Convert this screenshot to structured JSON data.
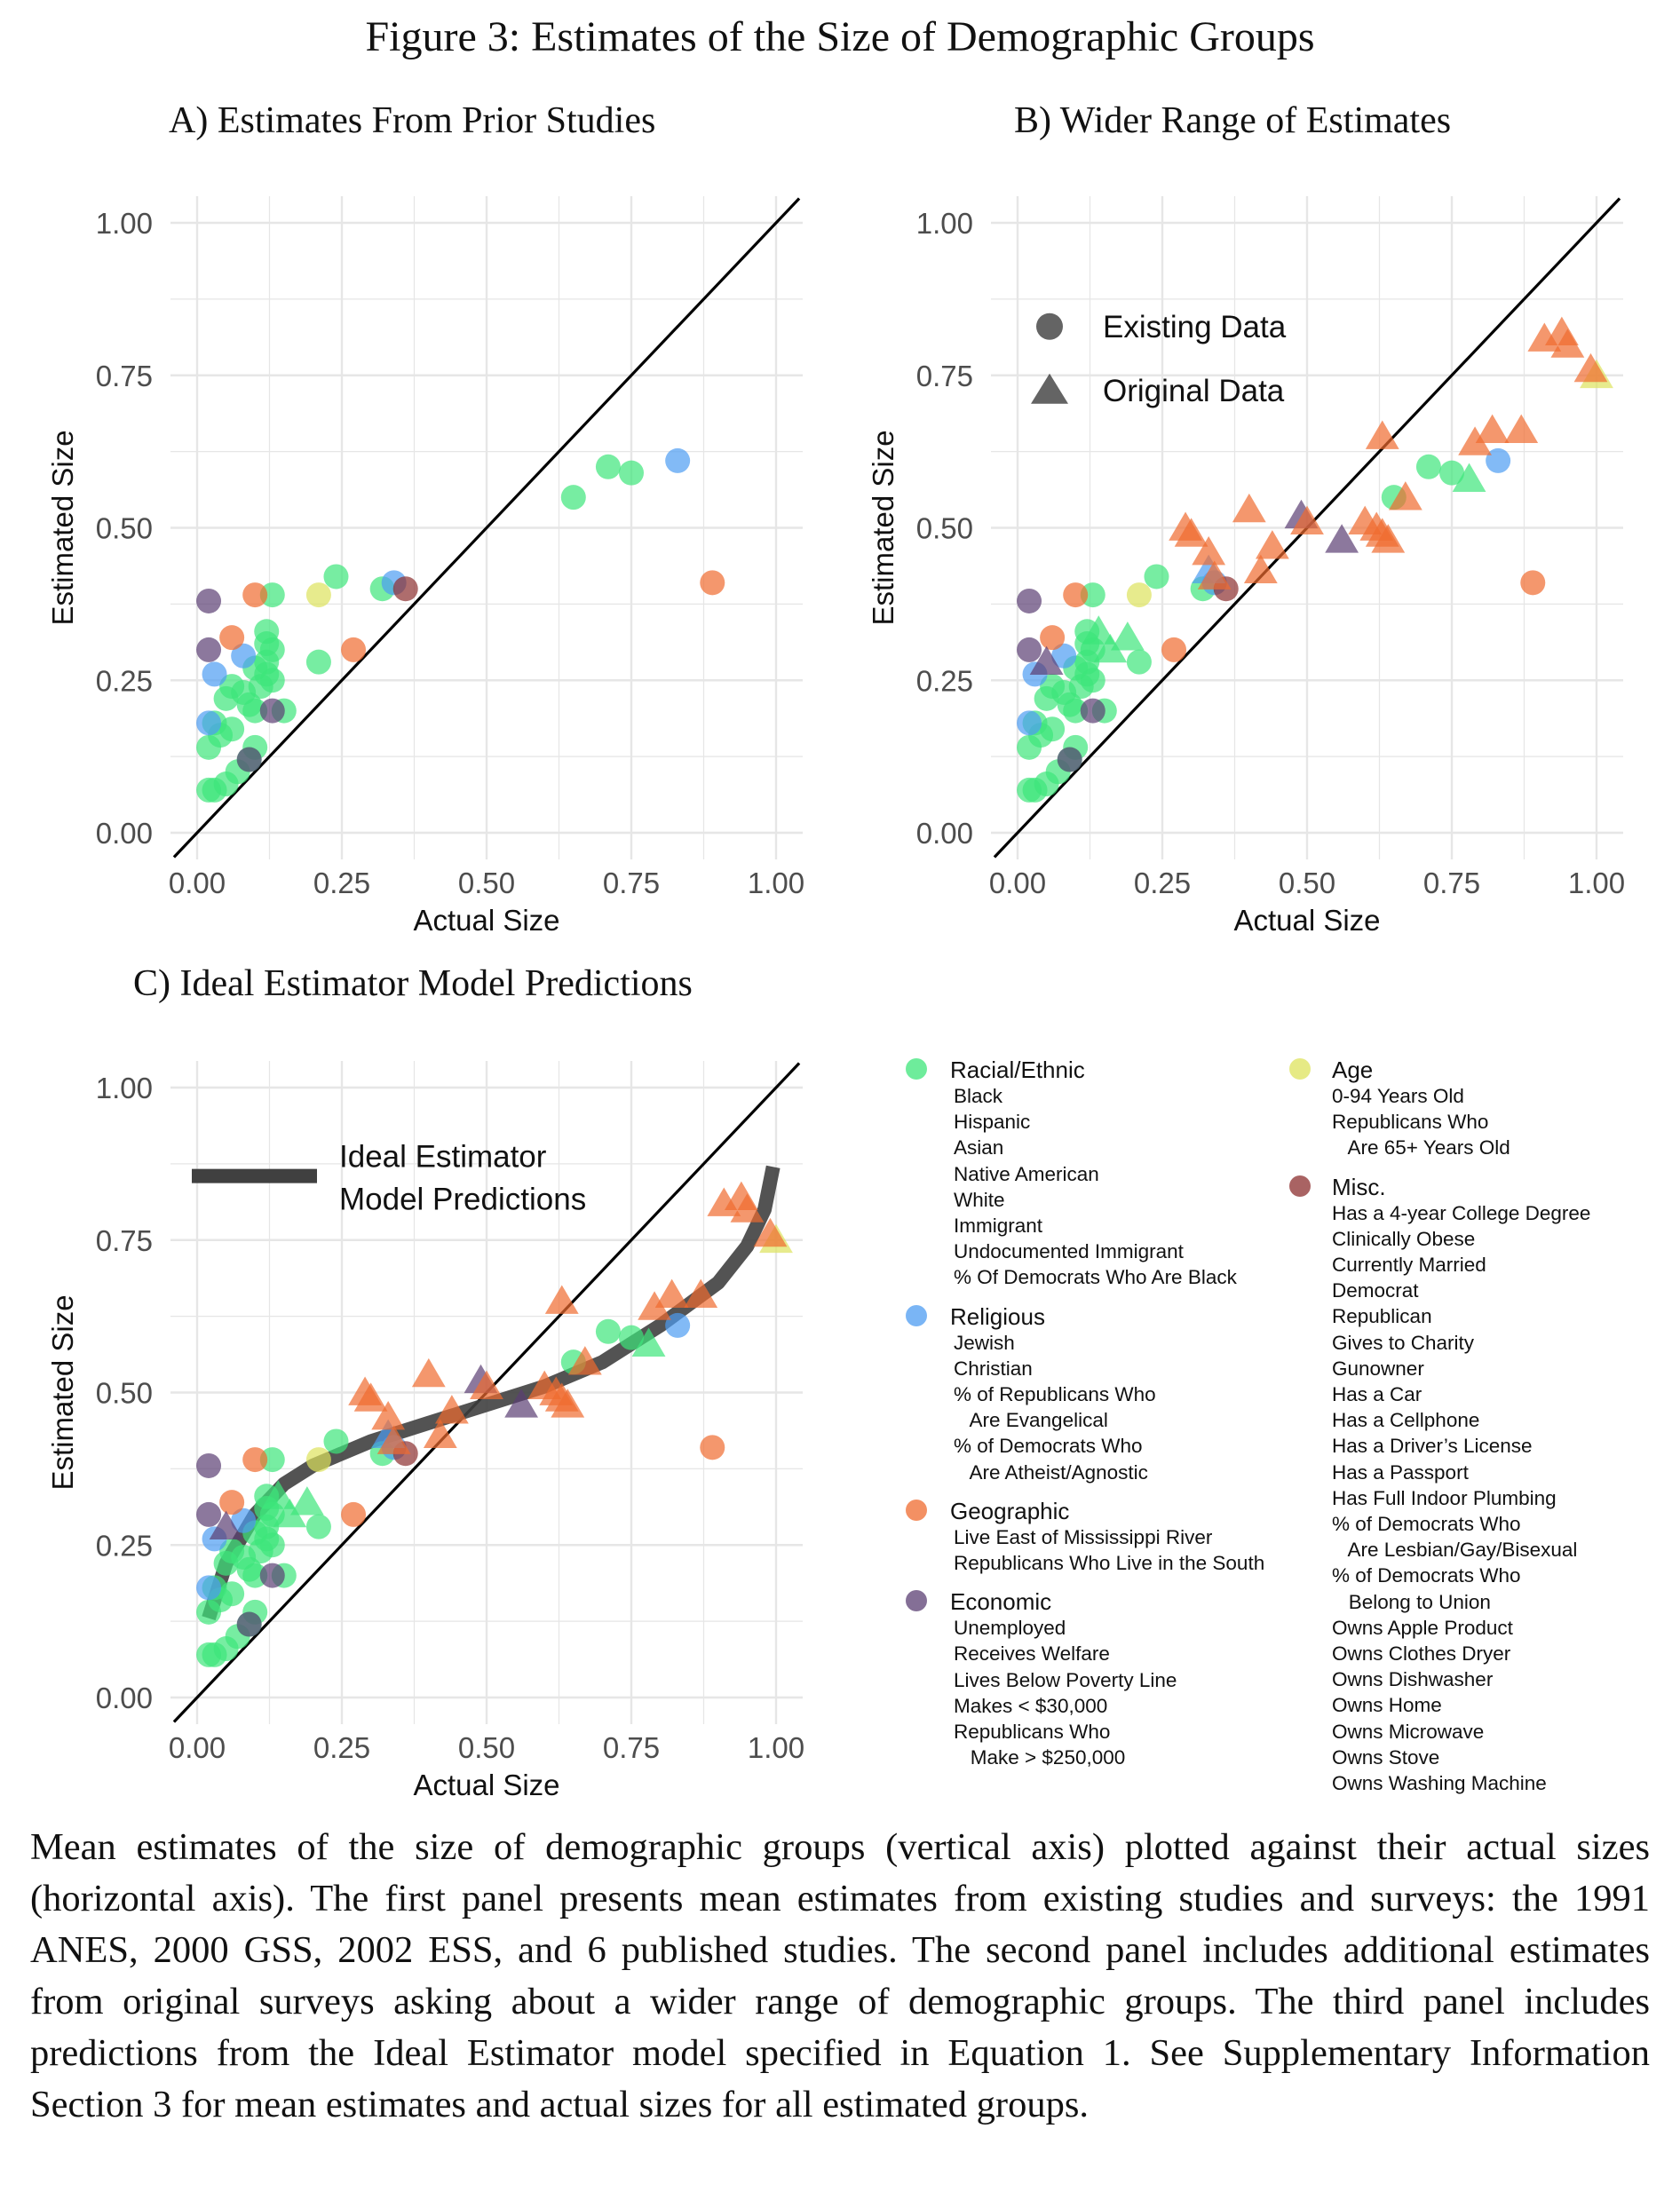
{
  "figure_title": "Figure 3: Estimates of the Size of Demographic Groups",
  "caption": "Mean estimates of the size of demographic groups (vertical axis) plotted against their actual sizes (horizontal axis). The first panel presents mean estimates from existing studies and sur­veys: the 1991 ANES, 2000 GSS, 2002 ESS, and 6 published studies. The second panel in­cludes additional estimates from original surveys asking about a wider range of demographic groups. The third panel includes predictions from the Ideal Estimator model specified in Equa­tion 1. See Supplementary Information Section 3 for mean estimates and actual sizes for all estimated groups.",
  "colors": {
    "racial": "#3de57a",
    "religious": "#4d9cf2",
    "geographic": "#ef6b2f",
    "economic": "#5b3f73",
    "age": "#dde35c",
    "misc": "#8c2f2f",
    "line45": "#000000",
    "ideal": "#404040",
    "grid": "#e6e6e6"
  },
  "chart_data": [
    {
      "type": "scatter",
      "panel": "A",
      "title": "A) Estimates From Prior Studies",
      "xlabel": "Actual Size",
      "ylabel": "Estimated Size",
      "xlim": [
        0,
        1
      ],
      "ylim": [
        0,
        1
      ],
      "xticks": [
        "0.00",
        "0.25",
        "0.50",
        "0.75",
        "1.00"
      ],
      "yticks": [
        "0.00",
        "0.25",
        "0.50",
        "0.75",
        "1.00"
      ],
      "grid": true,
      "reference_line": "y = x",
      "show_original": false,
      "show_ideal": false
    },
    {
      "type": "scatter",
      "panel": "B",
      "title": "B) Wider Range of Estimates",
      "xlabel": "Actual Size",
      "ylabel": "Estimated Size",
      "xlim": [
        0,
        1
      ],
      "ylim": [
        0,
        1
      ],
      "xticks": [
        "0.00",
        "0.25",
        "0.50",
        "0.75",
        "1.00"
      ],
      "yticks": [
        "0.00",
        "0.25",
        "0.50",
        "0.75",
        "1.00"
      ],
      "grid": true,
      "reference_line": "y = x",
      "show_original": true,
      "show_ideal": false,
      "shape_legend": [
        {
          "shape": "circle",
          "label": "Existing Data"
        },
        {
          "shape": "triangle",
          "label": "Original Data"
        }
      ]
    },
    {
      "type": "scatter",
      "panel": "C",
      "title": "C) Ideal Estimator Model Predictions",
      "xlabel": "Actual Size",
      "ylabel": "Estimated Size",
      "xlim": [
        0,
        1
      ],
      "ylim": [
        0,
        1
      ],
      "xticks": [
        "0.00",
        "0.25",
        "0.50",
        "0.75",
        "1.00"
      ],
      "yticks": [
        "0.00",
        "0.25",
        "0.50",
        "0.75",
        "1.00"
      ],
      "grid": true,
      "reference_line": "y = x",
      "show_original": true,
      "show_ideal": true,
      "line_legend": [
        "Ideal Estimator",
        "Model Predictions"
      ]
    }
  ],
  "series": {
    "existing": [
      {
        "g": "racial",
        "x": 0.02,
        "y": 0.07
      },
      {
        "g": "racial",
        "x": 0.03,
        "y": 0.07
      },
      {
        "g": "racial",
        "x": 0.05,
        "y": 0.08
      },
      {
        "g": "racial",
        "x": 0.02,
        "y": 0.14
      },
      {
        "g": "racial",
        "x": 0.04,
        "y": 0.16
      },
      {
        "g": "racial",
        "x": 0.06,
        "y": 0.17
      },
      {
        "g": "racial",
        "x": 0.03,
        "y": 0.18
      },
      {
        "g": "racial",
        "x": 0.07,
        "y": 0.1
      },
      {
        "g": "racial",
        "x": 0.09,
        "y": 0.12
      },
      {
        "g": "racial",
        "x": 0.1,
        "y": 0.14
      },
      {
        "g": "racial",
        "x": 0.05,
        "y": 0.22
      },
      {
        "g": "racial",
        "x": 0.06,
        "y": 0.24
      },
      {
        "g": "racial",
        "x": 0.08,
        "y": 0.23
      },
      {
        "g": "racial",
        "x": 0.09,
        "y": 0.21
      },
      {
        "g": "racial",
        "x": 0.1,
        "y": 0.2
      },
      {
        "g": "racial",
        "x": 0.11,
        "y": 0.24
      },
      {
        "g": "racial",
        "x": 0.12,
        "y": 0.26
      },
      {
        "g": "racial",
        "x": 0.13,
        "y": 0.25
      },
      {
        "g": "racial",
        "x": 0.12,
        "y": 0.28
      },
      {
        "g": "racial",
        "x": 0.1,
        "y": 0.27
      },
      {
        "g": "racial",
        "x": 0.12,
        "y": 0.31
      },
      {
        "g": "racial",
        "x": 0.13,
        "y": 0.3
      },
      {
        "g": "racial",
        "x": 0.12,
        "y": 0.33
      },
      {
        "g": "racial",
        "x": 0.13,
        "y": 0.39
      },
      {
        "g": "racial",
        "x": 0.15,
        "y": 0.2
      },
      {
        "g": "racial",
        "x": 0.21,
        "y": 0.28
      },
      {
        "g": "racial",
        "x": 0.24,
        "y": 0.42
      },
      {
        "g": "racial",
        "x": 0.32,
        "y": 0.4
      },
      {
        "g": "racial",
        "x": 0.65,
        "y": 0.55
      },
      {
        "g": "racial",
        "x": 0.71,
        "y": 0.6
      },
      {
        "g": "racial",
        "x": 0.75,
        "y": 0.59
      },
      {
        "g": "religious",
        "x": 0.02,
        "y": 0.18
      },
      {
        "g": "religious",
        "x": 0.03,
        "y": 0.26
      },
      {
        "g": "religious",
        "x": 0.08,
        "y": 0.29
      },
      {
        "g": "religious",
        "x": 0.34,
        "y": 0.41
      },
      {
        "g": "religious",
        "x": 0.83,
        "y": 0.61
      },
      {
        "g": "geographic",
        "x": 0.06,
        "y": 0.32
      },
      {
        "g": "geographic",
        "x": 0.1,
        "y": 0.39
      },
      {
        "g": "geographic",
        "x": 0.27,
        "y": 0.3
      },
      {
        "g": "geographic",
        "x": 0.89,
        "y": 0.41
      },
      {
        "g": "economic",
        "x": 0.02,
        "y": 0.38
      },
      {
        "g": "economic",
        "x": 0.02,
        "y": 0.3
      },
      {
        "g": "economic",
        "x": 0.09,
        "y": 0.12
      },
      {
        "g": "economic",
        "x": 0.13,
        "y": 0.2
      },
      {
        "g": "age",
        "x": 0.21,
        "y": 0.39
      },
      {
        "g": "misc",
        "x": 0.36,
        "y": 0.4
      }
    ],
    "original": [
      {
        "g": "racial",
        "x": 0.14,
        "y": 0.33
      },
      {
        "g": "racial",
        "x": 0.16,
        "y": 0.3
      },
      {
        "g": "racial",
        "x": 0.19,
        "y": 0.32
      },
      {
        "g": "racial",
        "x": 0.78,
        "y": 0.58
      },
      {
        "g": "religious",
        "x": 0.33,
        "y": 0.43
      },
      {
        "g": "economic",
        "x": 0.05,
        "y": 0.28
      },
      {
        "g": "economic",
        "x": 0.49,
        "y": 0.52
      },
      {
        "g": "economic",
        "x": 0.56,
        "y": 0.48
      },
      {
        "g": "age",
        "x": 1.0,
        "y": 0.75
      },
      {
        "g": "geographic",
        "x": 0.29,
        "y": 0.5
      },
      {
        "g": "geographic",
        "x": 0.3,
        "y": 0.49
      },
      {
        "g": "geographic",
        "x": 0.33,
        "y": 0.46
      },
      {
        "g": "geographic",
        "x": 0.34,
        "y": 0.42
      },
      {
        "g": "geographic",
        "x": 0.4,
        "y": 0.53
      },
      {
        "g": "geographic",
        "x": 0.42,
        "y": 0.43
      },
      {
        "g": "geographic",
        "x": 0.44,
        "y": 0.47
      },
      {
        "g": "geographic",
        "x": 0.5,
        "y": 0.51
      },
      {
        "g": "geographic",
        "x": 0.6,
        "y": 0.51
      },
      {
        "g": "geographic",
        "x": 0.62,
        "y": 0.5
      },
      {
        "g": "geographic",
        "x": 0.63,
        "y": 0.49
      },
      {
        "g": "geographic",
        "x": 0.64,
        "y": 0.48
      },
      {
        "g": "geographic",
        "x": 0.67,
        "y": 0.55
      },
      {
        "g": "geographic",
        "x": 0.63,
        "y": 0.65
      },
      {
        "g": "geographic",
        "x": 0.79,
        "y": 0.64
      },
      {
        "g": "geographic",
        "x": 0.82,
        "y": 0.66
      },
      {
        "g": "geographic",
        "x": 0.87,
        "y": 0.66
      },
      {
        "g": "geographic",
        "x": 0.91,
        "y": 0.81
      },
      {
        "g": "geographic",
        "x": 0.94,
        "y": 0.82
      },
      {
        "g": "geographic",
        "x": 0.95,
        "y": 0.8
      },
      {
        "g": "geographic",
        "x": 0.99,
        "y": 0.76
      }
    ],
    "ideal_curve": [
      [
        0.02,
        0.13
      ],
      [
        0.05,
        0.22
      ],
      [
        0.1,
        0.3
      ],
      [
        0.15,
        0.35
      ],
      [
        0.2,
        0.38
      ],
      [
        0.3,
        0.42
      ],
      [
        0.4,
        0.45
      ],
      [
        0.5,
        0.48
      ],
      [
        0.6,
        0.51
      ],
      [
        0.7,
        0.55
      ],
      [
        0.8,
        0.61
      ],
      [
        0.9,
        0.68
      ],
      [
        0.95,
        0.74
      ],
      [
        0.98,
        0.8
      ],
      [
        0.995,
        0.87
      ]
    ]
  },
  "legend": {
    "groups": [
      {
        "key": "racial",
        "label": "Racial/Ethnic",
        "items": [
          "Black",
          "Hispanic",
          "Asian",
          "Native American",
          "White",
          "Immigrant",
          "Undocumented Immigrant",
          "% Of Democrats Who Are Black"
        ]
      },
      {
        "key": "religious",
        "label": "Religious",
        "items": [
          "Jewish",
          "Christian",
          "% of Republicans Who",
          "   Are Evangelical",
          "% of Democrats Who",
          "   Are Atheist/Agnostic"
        ]
      },
      {
        "key": "geographic",
        "label": "Geographic",
        "items": [
          "Live East of Mississippi River",
          "Republicans Who Live in the South"
        ]
      },
      {
        "key": "economic",
        "label": "Economic",
        "items": [
          "Unemployed",
          "Receives Welfare",
          "Lives Below Poverty Line",
          "Makes < $30,000",
          "Republicans Who",
          "   Make > $250,000"
        ]
      },
      {
        "key": "age",
        "label": "Age",
        "items": [
          "0-94 Years Old",
          "Republicans Who",
          "   Are 65+ Years Old"
        ]
      },
      {
        "key": "misc",
        "label": "Misc.",
        "items": [
          "Has a 4-year College Degree",
          "Clinically Obese",
          "Currently Married",
          "Democrat",
          "Republican",
          "Gives to Charity",
          "Gunowner",
          "Has a Car",
          "Has a Cellphone",
          "Has a Driver’s License",
          "Has a Passport",
          "Has Full Indoor Plumbing",
          "% of Democrats Who",
          "   Are Lesbian/Gay/Bisexual",
          "% of Democrats Who",
          "   Belong to Union",
          "Owns Apple Product",
          "Owns Clothes Dryer",
          "Owns Dishwasher",
          "Owns Home",
          "Owns Microwave",
          "Owns Stove",
          "Owns Washing Machine"
        ]
      }
    ]
  }
}
